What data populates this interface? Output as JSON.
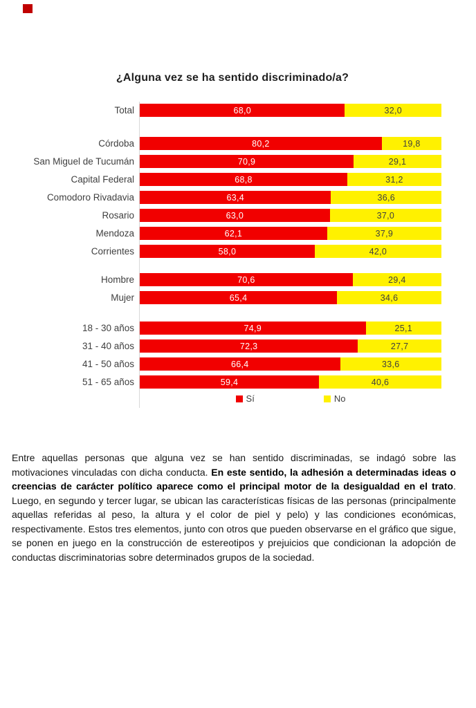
{
  "page": {
    "corner_marker_color": "#c00000"
  },
  "chart": {
    "title": "¿Alguna vez se ha sentido discriminado/a?",
    "colors": {
      "si": "#f10000",
      "no": "#fff100",
      "value_on_si": "#ffffff",
      "value_on_no": "#3f3f3f",
      "category_label": "#3f3f3f",
      "axis_line": "#d8d8d8"
    },
    "legend": [
      {
        "label": "Sí",
        "color": "#f10000"
      },
      {
        "label": "No",
        "color": "#fff100"
      }
    ]
  },
  "chart_data": {
    "type": "bar",
    "orientation": "horizontal",
    "stacked": true,
    "title": "¿Alguna vez se ha sentido discriminado/a?",
    "xlim": [
      0,
      100
    ],
    "grid": false,
    "legend_position": "bottom",
    "value_label_format": "decimal-comma-1",
    "categories": [
      "Total",
      "Córdoba",
      "San Miguel de Tucumán",
      "Capital Federal",
      "Comodoro Rivadavia",
      "Rosario",
      "Mendoza",
      "Corrientes",
      "Hombre",
      "Mujer",
      "18 - 30 años",
      "31 - 40 años",
      "41 - 50 años",
      "51 - 65 años"
    ],
    "category_groups": [
      "total",
      "city",
      "city",
      "city",
      "city",
      "city",
      "city",
      "city",
      "gender",
      "gender",
      "age",
      "age",
      "age",
      "age"
    ],
    "series": [
      {
        "name": "Sí",
        "color": "#f10000",
        "values": [
          68.0,
          80.2,
          70.9,
          68.8,
          63.4,
          63.0,
          62.1,
          58.0,
          70.6,
          65.4,
          74.9,
          72.3,
          66.4,
          59.4
        ]
      },
      {
        "name": "No",
        "color": "#fff100",
        "values": [
          32.0,
          19.8,
          29.1,
          31.2,
          36.6,
          37.0,
          37.9,
          42.0,
          29.4,
          34.6,
          25.1,
          27.7,
          33.6,
          40.6
        ]
      }
    ]
  },
  "paragraph": {
    "segments": [
      {
        "bold": false,
        "text": "Entre aquellas personas que alguna vez se han sentido discriminadas, se indagó sobre las motivaciones vinculadas con dicha conducta. "
      },
      {
        "bold": true,
        "text": "En este sentido, la adhesión a determinadas ideas o creencias de carácter político aparece como el principal motor de la desigualdad en el trato"
      },
      {
        "bold": false,
        "text": ". Luego, en segundo y tercer lugar, se ubican las características físicas de las personas (principalmente aquellas referidas al peso, la altura y el color de piel y pelo) y las condiciones económicas, respectivamente. Estos tres elementos, junto con otros que pueden observarse en el gráfico que sigue, se ponen en juego en la construcción de estereotipos y prejuicios que condicionan la adopción de conductas discriminatorias sobre determinados grupos de la sociedad."
      }
    ]
  }
}
